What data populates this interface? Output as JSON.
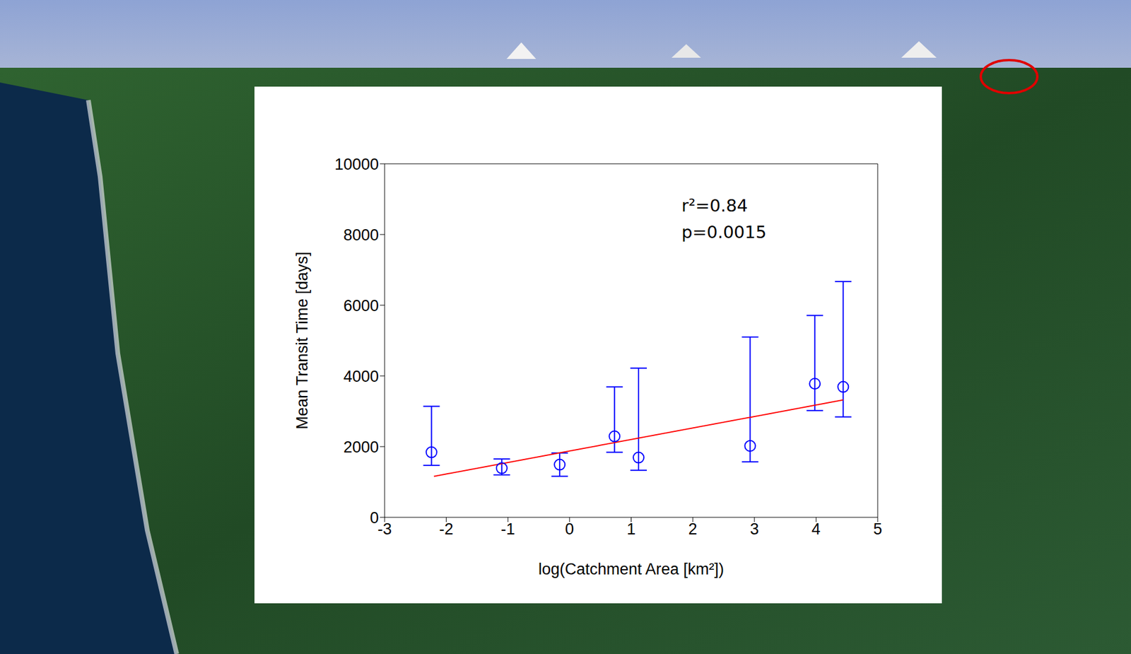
{
  "chart_data": {
    "type": "scatter",
    "x_label": "log(Catchment Area [km²])",
    "y_label": "Mean Transit Time [days]",
    "annotations": [
      "r²=0.84",
      "p=0.0015"
    ],
    "x": [
      -2.24,
      -1.1,
      -0.16,
      0.73,
      1.12,
      2.93,
      3.98,
      4.44
    ],
    "values": [
      1840,
      1390,
      1490,
      2290,
      1690,
      2020,
      3780,
      3690
    ],
    "y_lower": [
      1470,
      1200,
      1160,
      1840,
      1330,
      1570,
      3020,
      2840
    ],
    "y_upper": [
      3140,
      1650,
      1820,
      3690,
      4220,
      5100,
      5710,
      6670
    ],
    "color": "#0000ff",
    "marker": "o",
    "fit": {
      "x": [
        -2.2,
        4.44
      ],
      "values": [
        1160,
        3320
      ],
      "color": "#ff0000",
      "line_style": "solid"
    },
    "xlim": [
      -3,
      5
    ],
    "xticks": [
      -3,
      -2,
      -1,
      0,
      1,
      2,
      3,
      4,
      5
    ],
    "ylim": [
      0,
      10000
    ],
    "yticks": [
      0,
      2000,
      4000,
      6000,
      8000,
      10000
    ],
    "grid": false
  }
}
